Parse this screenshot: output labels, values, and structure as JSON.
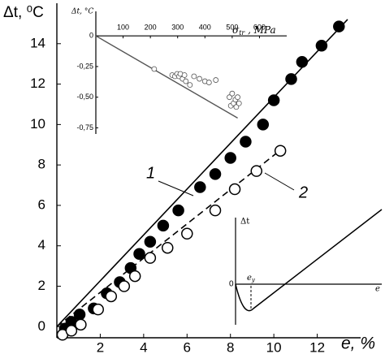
{
  "chart_data": [
    {
      "type": "scatter",
      "y_label": "Δt, ⁰C",
      "x_label": "e, %",
      "xlim": [
        0,
        14
      ],
      "ylim": [
        -0.55,
        16
      ],
      "xticks": [
        2,
        4,
        6,
        8,
        10,
        12
      ],
      "yticks": [
        0,
        2,
        4,
        6,
        8,
        10,
        12,
        14
      ],
      "series": [
        {
          "name": "1",
          "color": "#000000",
          "filled": true,
          "x": [
            0.37,
            0.67,
            1.05,
            1.7,
            2.3,
            2.9,
            3.4,
            3.8,
            4.3,
            4.9,
            5.6,
            6.6,
            7.3,
            8.0,
            8.7,
            9.5,
            10.0,
            10.8,
            11.3,
            12.2,
            13.0
          ],
          "values": [
            -0.1,
            0.24,
            0.6,
            0.9,
            1.65,
            2.2,
            2.9,
            3.6,
            4.2,
            5.0,
            5.75,
            6.9,
            7.55,
            8.35,
            9.15,
            10.0,
            11.2,
            12.25,
            13.1,
            13.9,
            14.85
          ],
          "fit": {
            "x": [
              0,
              13.4
            ],
            "values": [
              0,
              15.2
            ],
            "dashed": false
          }
        },
        {
          "name": "2",
          "color": "#000000",
          "filled": false,
          "x": [
            0.26,
            0.67,
            1.1,
            1.9,
            2.5,
            3.1,
            3.6,
            4.3,
            5.1,
            6.0,
            7.3,
            8.2,
            9.2,
            10.3
          ],
          "values": [
            -0.4,
            -0.2,
            0.1,
            0.85,
            1.5,
            2.0,
            2.5,
            3.4,
            3.9,
            4.6,
            5.75,
            6.8,
            7.7,
            8.7
          ],
          "fit": {
            "x": [
              0,
              10.5
            ],
            "values": [
              0,
              8.9
            ],
            "dashed": true
          }
        }
      ]
    },
    {
      "type": "scatter",
      "y_label": "Δt, °C",
      "x_label_symbol": "σ",
      "x_label_subscript": "tr",
      "x_label_unit": " , MPa",
      "xlim": [
        0,
        700
      ],
      "ylim": [
        -0.8,
        0.2
      ],
      "xticks": [
        100,
        200,
        300,
        400,
        500,
        600
      ],
      "yticks": [
        {
          "value": 0,
          "label": "0"
        },
        {
          "value": -0.25,
          "label": "-0,25"
        },
        {
          "value": -0.5,
          "label": "-0,50"
        },
        {
          "value": -0.75,
          "label": "-0,75"
        }
      ],
      "series": [
        {
          "color": "#555555",
          "filled": false,
          "x": [
            214,
            280,
            290,
            298,
            305,
            310,
            318,
            325,
            330,
            345,
            360,
            380,
            400,
            415,
            440,
            490,
            495,
            500,
            505,
            512,
            515,
            520,
            525
          ],
          "values": [
            -0.27,
            -0.32,
            -0.33,
            -0.31,
            -0.33,
            -0.31,
            -0.35,
            -0.32,
            -0.37,
            -0.4,
            -0.33,
            -0.35,
            -0.37,
            -0.38,
            -0.36,
            -0.5,
            -0.57,
            -0.47,
            -0.55,
            -0.52,
            -0.58,
            -0.5,
            -0.55
          ],
          "fit": {
            "x": [
              0,
              520
            ],
            "values": [
              0,
              -0.67
            ],
            "dashed": false
          }
        }
      ]
    }
  ],
  "schematic": {
    "y_label": "Δt",
    "x_label": "e",
    "origin_label": "0",
    "yield_label": "e",
    "yield_label_subscript": "y"
  }
}
